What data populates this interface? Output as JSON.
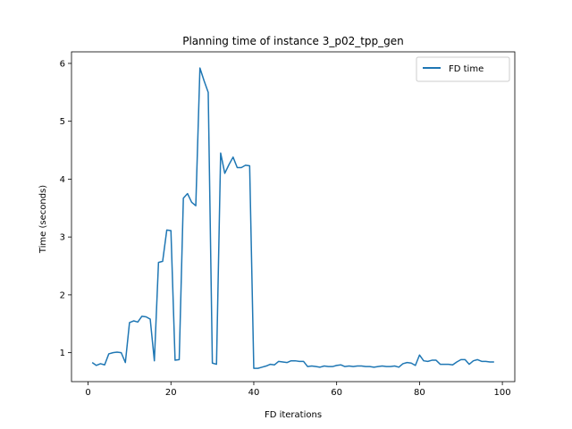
{
  "chart_data": {
    "type": "line",
    "title": "Planning time of instance 3_p02_tpp_gen",
    "xlabel": "FD iterations",
    "ylabel": "Time (seconds)",
    "xlim": [
      -4,
      103
    ],
    "ylim": [
      0.5,
      6.2
    ],
    "xticks": [
      0,
      20,
      40,
      60,
      80,
      100
    ],
    "yticks": [
      1,
      2,
      3,
      4,
      5,
      6
    ],
    "grid": false,
    "legend_position": "top-right",
    "series": [
      {
        "name": "FD time",
        "color": "#1f77b4",
        "x": [
          1,
          2,
          3,
          4,
          5,
          6,
          7,
          8,
          9,
          10,
          11,
          12,
          13,
          14,
          15,
          16,
          17,
          18,
          19,
          20,
          21,
          22,
          23,
          24,
          25,
          26,
          27,
          28,
          29,
          30,
          31,
          32,
          33,
          34,
          35,
          36,
          37,
          38,
          39,
          40,
          41,
          42,
          43,
          44,
          45,
          46,
          47,
          48,
          49,
          50,
          51,
          52,
          53,
          54,
          55,
          56,
          57,
          58,
          59,
          60,
          61,
          62,
          63,
          64,
          65,
          66,
          67,
          68,
          69,
          70,
          71,
          72,
          73,
          74,
          75,
          76,
          77,
          78,
          79,
          80,
          81,
          82,
          83,
          84,
          85,
          86,
          87,
          88,
          89,
          90,
          91,
          92,
          93,
          94,
          95,
          96,
          97,
          98
        ],
        "y": [
          0.83,
          0.78,
          0.81,
          0.79,
          0.98,
          1.0,
          1.01,
          1.0,
          0.83,
          1.52,
          1.55,
          1.53,
          1.63,
          1.62,
          1.58,
          0.86,
          2.56,
          2.58,
          3.12,
          3.11,
          0.87,
          0.88,
          3.67,
          3.75,
          3.6,
          3.54,
          5.92,
          5.7,
          5.5,
          0.82,
          0.8,
          4.45,
          4.1,
          4.25,
          4.38,
          4.2,
          4.2,
          4.24,
          4.23,
          0.73,
          0.73,
          0.75,
          0.77,
          0.8,
          0.79,
          0.85,
          0.84,
          0.83,
          0.86,
          0.86,
          0.85,
          0.85,
          0.76,
          0.77,
          0.76,
          0.75,
          0.77,
          0.76,
          0.76,
          0.78,
          0.79,
          0.76,
          0.77,
          0.76,
          0.77,
          0.77,
          0.76,
          0.76,
          0.75,
          0.76,
          0.77,
          0.76,
          0.76,
          0.77,
          0.75,
          0.81,
          0.83,
          0.82,
          0.78,
          0.96,
          0.86,
          0.85,
          0.87,
          0.87,
          0.8,
          0.8,
          0.8,
          0.79,
          0.84,
          0.88,
          0.88,
          0.8,
          0.86,
          0.88,
          0.85,
          0.85,
          0.84,
          0.84
        ]
      }
    ]
  }
}
